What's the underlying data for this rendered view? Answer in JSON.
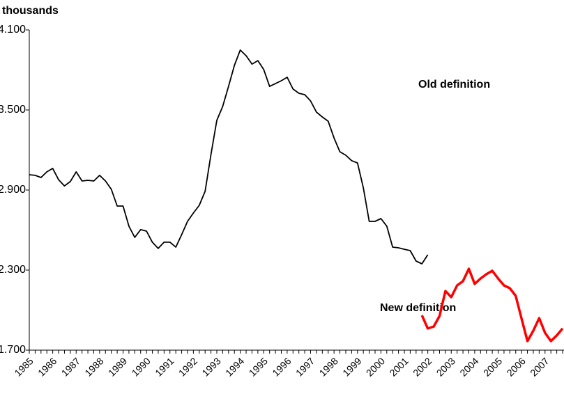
{
  "chart_data": {
    "type": "line",
    "y_axis_label": "thousands",
    "annotations": [
      "Old definition",
      "New definition"
    ],
    "categories": [
      "1985",
      null,
      null,
      null,
      "1986",
      null,
      null,
      null,
      "1987",
      null,
      null,
      null,
      "1988",
      null,
      null,
      null,
      "1989",
      null,
      null,
      null,
      "1990",
      null,
      null,
      null,
      "1991",
      null,
      null,
      null,
      "1992",
      null,
      null,
      null,
      "1993",
      null,
      null,
      null,
      "1994",
      null,
      null,
      null,
      "1995",
      null,
      null,
      null,
      "1996",
      null,
      null,
      null,
      "1997",
      null,
      null,
      null,
      "1998",
      null,
      null,
      null,
      "1999",
      null,
      null,
      null,
      "2000",
      null,
      null,
      null,
      "2001",
      null,
      null,
      null,
      "2002",
      null,
      null,
      null,
      "2003",
      null,
      null,
      null,
      "2004",
      null,
      null,
      null,
      "2005",
      null,
      null,
      null,
      "2006",
      null,
      null,
      null,
      "2007",
      null,
      null,
      null
    ],
    "series": [
      {
        "name": "Old definition",
        "color": "#000000",
        "values": [
          3015,
          3010,
          2994,
          3036,
          3062,
          2978,
          2931,
          2963,
          3036,
          2968,
          2973,
          2968,
          3010,
          2968,
          2905,
          2780,
          2780,
          2629,
          2545,
          2603,
          2592,
          2509,
          2462,
          2509,
          2509,
          2472,
          2566,
          2665,
          2728,
          2785,
          2890,
          3166,
          3422,
          3526,
          3677,
          3834,
          3949,
          3907,
          3844,
          3870,
          3803,
          3677,
          3698,
          3719,
          3745,
          3657,
          3625,
          3615,
          3568,
          3484,
          3448,
          3416,
          3291,
          3187,
          3161,
          3120,
          3103,
          2916,
          2665,
          2665,
          2686,
          2629,
          2472,
          2467,
          2456,
          2446,
          2368,
          2347,
          2415,
          null,
          null,
          null,
          null,
          null,
          null,
          null,
          null,
          null,
          null,
          null,
          null,
          null,
          null,
          null,
          null,
          null,
          null,
          null,
          null,
          null,
          null,
          null
        ]
      },
      {
        "name": "New definition",
        "color": "#ff0000",
        "values": [
          null,
          null,
          null,
          null,
          null,
          null,
          null,
          null,
          null,
          null,
          null,
          null,
          null,
          null,
          null,
          null,
          null,
          null,
          null,
          null,
          null,
          null,
          null,
          null,
          null,
          null,
          null,
          null,
          null,
          null,
          null,
          null,
          null,
          null,
          null,
          null,
          null,
          null,
          null,
          null,
          null,
          null,
          null,
          null,
          null,
          null,
          null,
          null,
          null,
          null,
          null,
          null,
          null,
          null,
          null,
          null,
          null,
          null,
          null,
          null,
          null,
          null,
          null,
          null,
          null,
          null,
          null,
          1961,
          1862,
          1877,
          1956,
          2143,
          2097,
          2185,
          2217,
          2310,
          2196,
          2237,
          2269,
          2295,
          2237,
          2185,
          2164,
          2107,
          1935,
          1768,
          1846,
          1940,
          1830,
          1768,
          1810,
          1862
        ]
      }
    ],
    "ylim": [
      1700,
      4100
    ],
    "yticks": [
      {
        "value": 1700,
        "label": "1.700"
      },
      {
        "value": 2300,
        "label": "2.300"
      },
      {
        "value": 2900,
        "label": "2.900"
      },
      {
        "value": 3500,
        "label": "3.500"
      },
      {
        "value": 4100,
        "label": "4.100"
      }
    ],
    "grid": false
  }
}
